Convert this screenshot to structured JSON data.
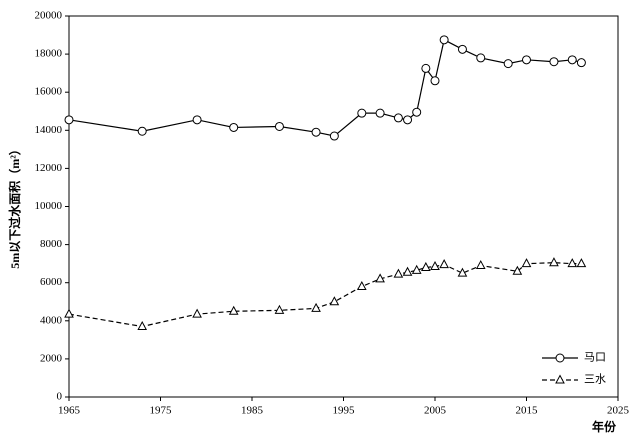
{
  "chart_data": {
    "type": "line",
    "x_label": "年份",
    "y_label": "5m以下过水面积（m²）",
    "xlim": [
      1965,
      2025
    ],
    "xticks": [
      1965,
      1975,
      1985,
      1995,
      2005,
      2015,
      2025
    ],
    "ylim": [
      0,
      20000
    ],
    "yticks": [
      0,
      2000,
      4000,
      6000,
      8000,
      10000,
      12000,
      14000,
      16000,
      18000,
      20000
    ],
    "legend": "lower right",
    "series": [
      {
        "name": "马口",
        "color": "#000000",
        "marker": "circle",
        "line_style": "solid",
        "x": [
          1965,
          1973,
          1979,
          1983,
          1988,
          1992,
          1994,
          1997,
          1999,
          2001,
          2002,
          2003,
          2004,
          2005,
          2006,
          2008,
          2010,
          2013,
          2015,
          2018,
          2020,
          2021
        ],
        "values": [
          14550,
          13950,
          14550,
          14150,
          14200,
          13900,
          13700,
          14900,
          14900,
          14650,
          14550,
          14950,
          17250,
          16600,
          18750,
          18250,
          17800,
          17500,
          17700,
          17600,
          17700,
          17550
        ]
      },
      {
        "name": "三水",
        "color": "#000000",
        "marker": "triangle",
        "line_style": "dashed",
        "x": [
          1965,
          1973,
          1979,
          1983,
          1988,
          1992,
          1994,
          1997,
          1999,
          2001,
          2002,
          2003,
          2004,
          2005,
          2006,
          2008,
          2010,
          2014,
          2015,
          2018,
          2020,
          2021
        ],
        "values": [
          4350,
          3700,
          4350,
          4500,
          4550,
          4650,
          5000,
          5800,
          6200,
          6450,
          6550,
          6650,
          6800,
          6850,
          6950,
          6500,
          6900,
          6600,
          7000,
          7050,
          7000,
          7000
        ]
      }
    ]
  }
}
